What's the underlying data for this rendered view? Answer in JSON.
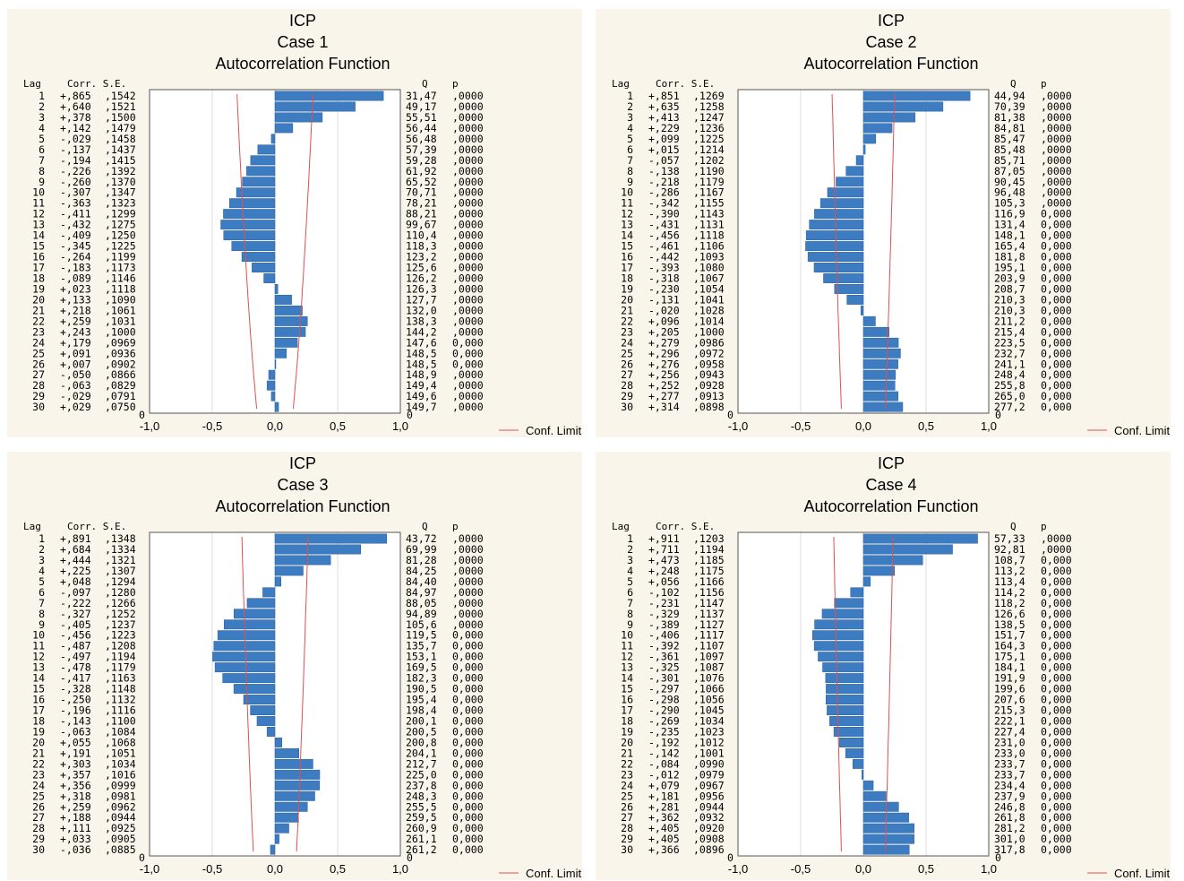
{
  "legend": {
    "label": "Conf. Limit"
  },
  "colors": {
    "bar": "#3d7cc0",
    "bar_edge": "#2a5f9d",
    "conf": "#e05050",
    "panel_bg": "#faf5ea",
    "plot_bg": "#ffffff",
    "grid": "#d9dcdf",
    "frame": "#555555",
    "text": "#000000"
  },
  "chart_data": [
    {
      "type": "bar",
      "orientation": "horizontal",
      "title": [
        "ICP",
        "Case 1",
        "Autocorrelation Function"
      ],
      "header": {
        "lag": "Lag",
        "corr_se": "Corr. S.E.",
        "q": "Q",
        "p": "p"
      },
      "xlim": [
        -1,
        1
      ],
      "x_ticks": [
        "-1,0",
        "-0,5",
        "0,0",
        "0,5",
        "1,0"
      ],
      "bottom_label": "0",
      "lags": [
        1,
        2,
        3,
        4,
        5,
        6,
        7,
        8,
        9,
        10,
        11,
        12,
        13,
        14,
        15,
        16,
        17,
        18,
        19,
        20,
        21,
        22,
        23,
        24,
        25,
        26,
        27,
        28,
        29,
        30
      ],
      "values": [
        0.865,
        0.64,
        0.378,
        0.142,
        -0.029,
        -0.137,
        -0.194,
        -0.226,
        -0.26,
        -0.307,
        -0.363,
        -0.411,
        -0.432,
        -0.409,
        -0.345,
        -0.264,
        -0.183,
        -0.089,
        0.023,
        0.133,
        0.218,
        0.259,
        0.243,
        0.179,
        0.091,
        0.007,
        -0.05,
        -0.063,
        -0.029,
        0.029
      ],
      "conf_limit": [
        0.302,
        0.298,
        0.294,
        0.29,
        0.286,
        0.282,
        0.277,
        0.273,
        0.269,
        0.264,
        0.259,
        0.255,
        0.25,
        0.245,
        0.24,
        0.235,
        0.23,
        0.225,
        0.219,
        0.214,
        0.208,
        0.202,
        0.196,
        0.19,
        0.183,
        0.177,
        0.17,
        0.162,
        0.155,
        0.147
      ],
      "corr_text": [
        "+,865",
        "+,640",
        "+,378",
        "+,142",
        "-,029",
        "-,137",
        "-,194",
        "-,226",
        "-,260",
        "-,307",
        "-,363",
        "-,411",
        "-,432",
        "-,409",
        "-,345",
        "-,264",
        "-,183",
        "-,089",
        "+,023",
        "+,133",
        "+,218",
        "+,259",
        "+,243",
        "+,179",
        "+,091",
        "+,007",
        "-,050",
        "-,063",
        "-,029",
        "+,029"
      ],
      "se_text": [
        ",1542",
        ",1521",
        ",1500",
        ",1479",
        ",1458",
        ",1437",
        ",1415",
        ",1392",
        ",1370",
        ",1347",
        ",1323",
        ",1299",
        ",1275",
        ",1250",
        ",1225",
        ",1199",
        ",1173",
        ",1146",
        ",1118",
        ",1090",
        ",1061",
        ",1031",
        ",1000",
        ",0969",
        ",0936",
        ",0902",
        ",0866",
        ",0829",
        ",0791",
        ",0750"
      ],
      "q_text": [
        "31,47",
        "49,17",
        "55,51",
        "56,44",
        "56,48",
        "57,39",
        "59,28",
        "61,92",
        "65,52",
        "70,71",
        "78,21",
        "88,21",
        "99,67",
        "110,4",
        "118,3",
        "123,2",
        "125,6",
        "126,2",
        "126,3",
        "127,7",
        "132,0",
        "138,3",
        "144,2",
        "147,6",
        "148,5",
        "148,5",
        "148,9",
        "149,4",
        "149,6",
        "149,7"
      ],
      "p_text": [
        ",0000",
        ",0000",
        ",0000",
        ",0000",
        ",0000",
        ",0000",
        ",0000",
        ",0000",
        ",0000",
        ",0000",
        ",0000",
        ",0000",
        ",0000",
        ",0000",
        ",0000",
        ",0000",
        ",0000",
        ",0000",
        ",0000",
        ",0000",
        ",0000",
        ",0000",
        ",0000",
        "0,000",
        "0,000",
        "0,000",
        ",0000",
        ",0000",
        ",0000",
        ",0000"
      ]
    },
    {
      "type": "bar",
      "orientation": "horizontal",
      "title": [
        "ICP",
        "Case 2",
        "Autocorrelation Function"
      ],
      "header": {
        "lag": "Lag",
        "corr_se": "Corr. S.E.",
        "q": "Q",
        "p": "p"
      },
      "xlim": [
        -1,
        1
      ],
      "x_ticks": [
        "-1,0",
        "-0,5",
        "0,0",
        "0,5",
        "1,0"
      ],
      "bottom_label": "0",
      "lags": [
        1,
        2,
        3,
        4,
        5,
        6,
        7,
        8,
        9,
        10,
        11,
        12,
        13,
        14,
        15,
        16,
        17,
        18,
        19,
        20,
        21,
        22,
        23,
        24,
        25,
        26,
        27,
        28,
        29,
        30
      ],
      "values": [
        0.851,
        0.635,
        0.413,
        0.229,
        0.099,
        0.015,
        -0.057,
        -0.138,
        -0.218,
        -0.286,
        -0.342,
        -0.39,
        -0.431,
        -0.456,
        -0.461,
        -0.442,
        -0.393,
        -0.318,
        -0.23,
        -0.131,
        -0.02,
        0.096,
        0.205,
        0.279,
        0.296,
        0.276,
        0.256,
        0.252,
        0.277,
        0.314
      ],
      "conf_limit": [
        0.249,
        0.247,
        0.244,
        0.242,
        0.24,
        0.238,
        0.236,
        0.233,
        0.231,
        0.229,
        0.227,
        0.224,
        0.222,
        0.219,
        0.217,
        0.214,
        0.212,
        0.209,
        0.207,
        0.204,
        0.202,
        0.199,
        0.196,
        0.193,
        0.191,
        0.188,
        0.185,
        0.182,
        0.179,
        0.176
      ],
      "corr_text": [
        "+,851",
        "+,635",
        "+,413",
        "+,229",
        "+,099",
        "+,015",
        "-,057",
        "-,138",
        "-,218",
        "-,286",
        "-,342",
        "-,390",
        "-,431",
        "-,456",
        "-,461",
        "-,442",
        "-,393",
        "-,318",
        "-,230",
        "-,131",
        "-,020",
        "+,096",
        "+,205",
        "+,279",
        "+,296",
        "+,276",
        "+,256",
        "+,252",
        "+,277",
        "+,314"
      ],
      "se_text": [
        ",1269",
        ",1258",
        ",1247",
        ",1236",
        ",1225",
        ",1214",
        ",1202",
        ",1190",
        ",1179",
        ",1167",
        ",1155",
        ",1143",
        ",1131",
        ",1118",
        ",1106",
        ",1093",
        ",1080",
        ",1067",
        ",1054",
        ",1041",
        ",1028",
        ",1014",
        ",1000",
        ",0986",
        ",0972",
        ",0958",
        ",0943",
        ",0928",
        ",0913",
        ",0898"
      ],
      "q_text": [
        "44,94",
        "70,39",
        "81,38",
        "84,81",
        "85,47",
        "85,48",
        "85,71",
        "87,05",
        "90,45",
        "96,48",
        "105,3",
        "116,9",
        "131,4",
        "148,1",
        "165,4",
        "181,8",
        "195,1",
        "203,9",
        "208,7",
        "210,3",
        "210,3",
        "211,2",
        "215,4",
        "223,5",
        "232,7",
        "241,1",
        "248,4",
        "255,8",
        "265,0",
        "277,2"
      ],
      "p_text": [
        ",0000",
        ",0000",
        ",0000",
        ",0000",
        ",0000",
        ",0000",
        ",0000",
        ",0000",
        ",0000",
        ",0000",
        ",0000",
        "0,000",
        "0,000",
        "0,000",
        "0,000",
        "0,000",
        "0,000",
        "0,000",
        "0,000",
        "0,000",
        "0,000",
        "0,000",
        "0,000",
        "0,000",
        "0,000",
        "0,000",
        "0,000",
        "0,000",
        "0,000",
        "0,000"
      ]
    },
    {
      "type": "bar",
      "orientation": "horizontal",
      "title": [
        "ICP",
        "Case 3",
        "Autocorrelation Function"
      ],
      "header": {
        "lag": "Lag",
        "corr_se": "Corr. S.E.",
        "q": "Q",
        "p": "p"
      },
      "xlim": [
        -1,
        1
      ],
      "x_ticks": [
        "-1,0",
        "-0,5",
        "0,0",
        "0,5",
        "1,0"
      ],
      "bottom_label": "0",
      "lags": [
        1,
        2,
        3,
        4,
        5,
        6,
        7,
        8,
        9,
        10,
        11,
        12,
        13,
        14,
        15,
        16,
        17,
        18,
        19,
        20,
        21,
        22,
        23,
        24,
        25,
        26,
        27,
        28,
        29,
        30
      ],
      "values": [
        0.891,
        0.684,
        0.444,
        0.225,
        0.048,
        -0.097,
        -0.222,
        -0.327,
        -0.405,
        -0.456,
        -0.487,
        -0.497,
        -0.478,
        -0.417,
        -0.328,
        -0.25,
        -0.196,
        -0.143,
        -0.063,
        0.055,
        0.191,
        0.303,
        0.357,
        0.356,
        0.318,
        0.259,
        0.188,
        0.111,
        0.033,
        -0.036
      ],
      "conf_limit": [
        0.263,
        0.261,
        0.259,
        0.256,
        0.254,
        0.251,
        0.248,
        0.245,
        0.242,
        0.24,
        0.237,
        0.234,
        0.231,
        0.228,
        0.225,
        0.222,
        0.219,
        0.216,
        0.212,
        0.209,
        0.206,
        0.203,
        0.199,
        0.196,
        0.192,
        0.189,
        0.185,
        0.181,
        0.177,
        0.173
      ],
      "corr_text": [
        "+,891",
        "+,684",
        "+,444",
        "+,225",
        "+,048",
        "-,097",
        "-,222",
        "-,327",
        "-,405",
        "-,456",
        "-,487",
        "-,497",
        "-,478",
        "-,417",
        "-,328",
        "-,250",
        "-,196",
        "-,143",
        "-,063",
        "+,055",
        "+,191",
        "+,303",
        "+,357",
        "+,356",
        "+,318",
        "+,259",
        "+,188",
        "+,111",
        "+,033",
        "-,036"
      ],
      "se_text": [
        ",1348",
        ",1334",
        ",1321",
        ",1307",
        ",1294",
        ",1280",
        ",1266",
        ",1252",
        ",1237",
        ",1223",
        ",1208",
        ",1194",
        ",1179",
        ",1163",
        ",1148",
        ",1132",
        ",1116",
        ",1100",
        ",1084",
        ",1068",
        ",1051",
        ",1034",
        ",1016",
        ",0999",
        ",0981",
        ",0962",
        ",0944",
        ",0925",
        ",0905",
        ",0885"
      ],
      "q_text": [
        "43,72",
        "69,99",
        "81,28",
        "84,25",
        "84,40",
        "84,97",
        "88,05",
        "94,89",
        "105,6",
        "119,5",
        "135,7",
        "153,1",
        "169,5",
        "182,3",
        "190,5",
        "195,4",
        "198,4",
        "200,1",
        "200,5",
        "200,8",
        "204,1",
        "212,7",
        "225,0",
        "237,8",
        "248,3",
        "255,5",
        "259,5",
        "260,9",
        "261,1",
        "261,2"
      ],
      "p_text": [
        ",0000",
        ",0000",
        ",0000",
        ",0000",
        ",0000",
        ",0000",
        ",0000",
        ",0000",
        ",0000",
        "0,000",
        "0,000",
        "0,000",
        "0,000",
        "0,000",
        "0,000",
        "0,000",
        "0,000",
        "0,000",
        "0,000",
        "0,000",
        "0,000",
        "0,000",
        "0,000",
        "0,000",
        "0,000",
        "0,000",
        "0,000",
        "0,000",
        "0,000",
        "0,000"
      ]
    },
    {
      "type": "bar",
      "orientation": "horizontal",
      "title": [
        "ICP",
        "Case 4",
        "Autocorrelation Function"
      ],
      "header": {
        "lag": "Lag",
        "corr_se": "Corr. S.E.",
        "q": "Q",
        "p": "p"
      },
      "xlim": [
        -1,
        1
      ],
      "x_ticks": [
        "-1,0",
        "-0,5",
        "0,0",
        "0,5",
        "1,0"
      ],
      "bottom_label": "0",
      "lags": [
        1,
        2,
        3,
        4,
        5,
        6,
        7,
        8,
        9,
        10,
        11,
        12,
        13,
        14,
        15,
        16,
        17,
        18,
        19,
        20,
        21,
        22,
        23,
        24,
        25,
        26,
        27,
        28,
        29,
        30
      ],
      "values": [
        0.911,
        0.711,
        0.473,
        0.248,
        0.056,
        -0.102,
        -0.231,
        -0.329,
        -0.389,
        -0.406,
        -0.392,
        -0.361,
        -0.325,
        -0.301,
        -0.297,
        -0.298,
        -0.29,
        -0.269,
        -0.235,
        -0.192,
        -0.142,
        -0.084,
        -0.012,
        0.079,
        0.181,
        0.281,
        0.362,
        0.405,
        0.405,
        0.366
      ],
      "conf_limit": [
        0.236,
        0.234,
        0.232,
        0.23,
        0.229,
        0.227,
        0.225,
        0.223,
        0.221,
        0.219,
        0.217,
        0.215,
        0.213,
        0.211,
        0.209,
        0.207,
        0.205,
        0.203,
        0.201,
        0.198,
        0.196,
        0.194,
        0.192,
        0.19,
        0.187,
        0.185,
        0.183,
        0.18,
        0.178,
        0.176
      ],
      "corr_text": [
        "+,911",
        "+,711",
        "+,473",
        "+,248",
        "+,056",
        "-,102",
        "-,231",
        "-,329",
        "-,389",
        "-,406",
        "-,392",
        "-,361",
        "-,325",
        "-,301",
        "-,297",
        "-,298",
        "-,290",
        "-,269",
        "-,235",
        "-,192",
        "-,142",
        "-,084",
        "-,012",
        "+,079",
        "+,181",
        "+,281",
        "+,362",
        "+,405",
        "+,405",
        "+,366"
      ],
      "se_text": [
        ",1203",
        ",1194",
        ",1185",
        ",1175",
        ",1166",
        ",1156",
        ",1147",
        ",1137",
        ",1127",
        ",1117",
        ",1107",
        ",1097",
        ",1087",
        ",1076",
        ",1066",
        ",1056",
        ",1045",
        ",1034",
        ",1023",
        ",1012",
        ",1001",
        ",0990",
        ",0979",
        ",0967",
        ",0956",
        ",0944",
        ",0932",
        ",0920",
        ",0908",
        ",0896"
      ],
      "q_text": [
        "57,33",
        "92,81",
        "108,7",
        "113,2",
        "113,4",
        "114,2",
        "118,2",
        "126,6",
        "138,5",
        "151,7",
        "164,3",
        "175,1",
        "184,1",
        "191,9",
        "199,6",
        "207,6",
        "215,3",
        "222,1",
        "227,4",
        "231,0",
        "233,0",
        "233,7",
        "233,7",
        "234,4",
        "237,9",
        "246,8",
        "261,8",
        "281,2",
        "301,0",
        "317,8"
      ],
      "p_text": [
        ",0000",
        ",0000",
        "0,000",
        "0,000",
        "0,000",
        "0,000",
        "0,000",
        "0,000",
        "0,000",
        "0,000",
        "0,000",
        "0,000",
        "0,000",
        "0,000",
        "0,000",
        "0,000",
        "0,000",
        "0,000",
        "0,000",
        "0,000",
        "0,000",
        "0,000",
        "0,000",
        "0,000",
        "0,000",
        "0,000",
        "0,000",
        "0,000",
        "0,000",
        "0,000"
      ]
    }
  ]
}
